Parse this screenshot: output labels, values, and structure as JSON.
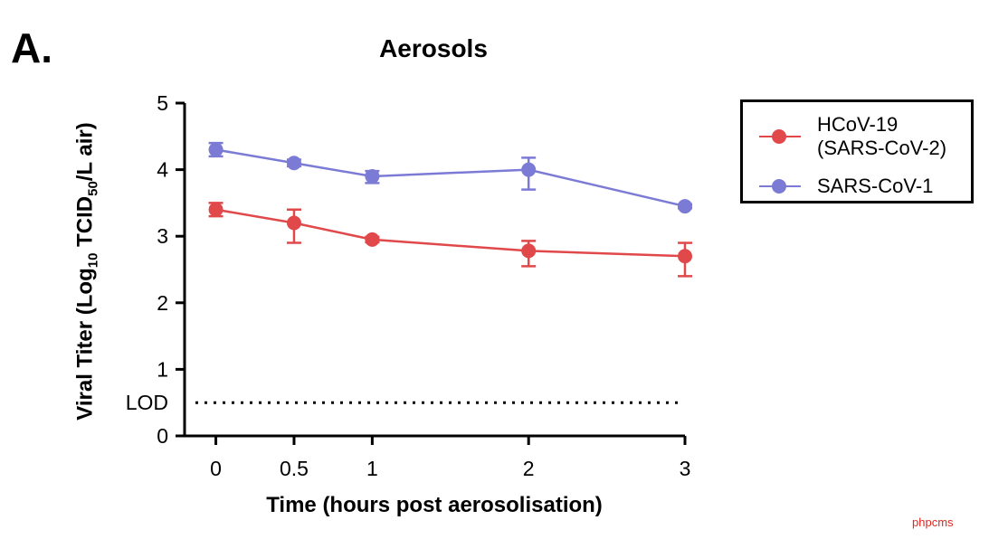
{
  "panel_label": "A.",
  "watermark": "phpcms",
  "colors": {
    "red": "#e0484a",
    "purple": "#7b7bd6",
    "axis": "#000000"
  },
  "chart_data": {
    "type": "line",
    "title": "Aerosols",
    "xlabel": "Time (hours post aerosolisation)",
    "ylabel_prefix": "Viral Titer (Log",
    "ylabel_sub1": "10",
    "ylabel_mid": " TCID",
    "ylabel_sub2": "50",
    "ylabel_suffix": "/L air)",
    "xlim": [
      -0.2,
      3
    ],
    "ylim": [
      0,
      5
    ],
    "x_ticks": [
      0,
      0.5,
      1,
      2,
      3
    ],
    "x_tick_labels": [
      "0",
      "0.5",
      "1",
      "2",
      "3"
    ],
    "y_ticks": [
      0,
      1,
      2,
      3,
      4,
      5
    ],
    "y_tick_labels": [
      "0",
      "1",
      "2",
      "3",
      "4",
      "5"
    ],
    "lod": {
      "label": "LOD",
      "value": 0.5
    },
    "legend_position": "top-right",
    "series": [
      {
        "name": "HCoV-19\n(SARS-CoV-2)",
        "color": "#e0484a",
        "x": [
          0,
          0.5,
          1,
          2,
          3
        ],
        "y": [
          3.4,
          3.2,
          2.95,
          2.78,
          2.7
        ],
        "err_low": [
          0.1,
          0.3,
          0.04,
          0.23,
          0.3
        ],
        "err_high": [
          0.1,
          0.2,
          0.04,
          0.15,
          0.2
        ]
      },
      {
        "name": "SARS-CoV-1",
        "color": "#7b7bd6",
        "x": [
          0,
          0.5,
          1,
          2,
          3
        ],
        "y": [
          4.3,
          4.1,
          3.9,
          4.0,
          3.45
        ],
        "err_low": [
          0.1,
          0.05,
          0.1,
          0.3,
          0.03
        ],
        "err_high": [
          0.1,
          0.05,
          0.08,
          0.18,
          0.03
        ]
      }
    ]
  }
}
